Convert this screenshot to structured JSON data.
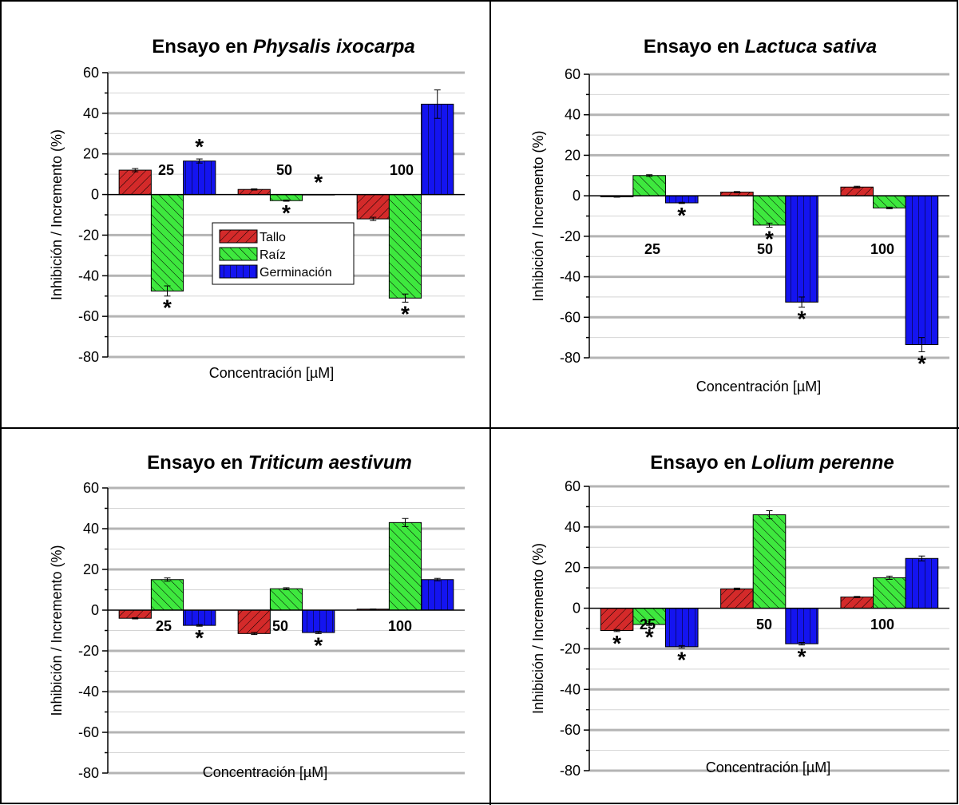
{
  "colors": {
    "tallo": "#d42a2a",
    "raiz": "#3ee83e",
    "germinacion": "#1414f0",
    "grid": "#b4b4b4"
  },
  "chart_data": [
    {
      "type": "bar",
      "title": "Ensayo en ",
      "title_species": "Physalis ixocarpa",
      "xlabel": "Concentración [µM]",
      "ylabel": "Inhibición / Incremento (%)",
      "ylim": [
        -80,
        60
      ],
      "yticks": [
        "60",
        "40",
        "20",
        "0",
        "-20",
        "-40",
        "-60",
        "-80"
      ],
      "grid": true,
      "legend": {
        "placement": "center",
        "entries": [
          "Tallo",
          "Raíz",
          "Germinación"
        ]
      },
      "categories": [
        "25",
        "50",
        "100"
      ],
      "series": [
        {
          "name": "Tallo",
          "values": [
            12,
            2.5,
            -12
          ],
          "errors": [
            0.8,
            0.3,
            0.8
          ],
          "significant": [
            false,
            false,
            false
          ]
        },
        {
          "name": "Raíz",
          "values": [
            -47.5,
            -3,
            -51
          ],
          "errors": [
            2.5,
            0.3,
            2.0
          ],
          "significant": [
            true,
            true,
            true
          ]
        },
        {
          "name": "Germinación",
          "values": [
            16.5,
            0,
            44.5
          ],
          "errors": [
            1.0,
            0,
            7.0
          ],
          "significant": [
            true,
            true,
            false
          ]
        }
      ]
    },
    {
      "type": "bar",
      "title": "Ensayo en ",
      "title_species": "Lactuca sativa",
      "xlabel": "Concentración [µM]",
      "ylabel": "Inhibición / Incremento (%)",
      "ylim": [
        -80,
        60
      ],
      "yticks": [
        "60",
        "40",
        "20",
        "0",
        "-20",
        "-40",
        "-60",
        "-80"
      ],
      "grid": true,
      "categories": [
        "25",
        "50",
        "100"
      ],
      "series": [
        {
          "name": "Tallo",
          "values": [
            -0.5,
            1.8,
            4.3
          ],
          "errors": [
            0.2,
            0.3,
            0.4
          ],
          "significant": [
            false,
            false,
            false
          ]
        },
        {
          "name": "Raíz",
          "values": [
            10,
            -14.5,
            -6
          ],
          "errors": [
            0.4,
            1.0,
            0.4
          ],
          "significant": [
            false,
            true,
            false
          ]
        },
        {
          "name": "Germinación",
          "values": [
            -3.5,
            -52.5,
            -73.5
          ],
          "errors": [
            0.3,
            2.5,
            3.5
          ],
          "significant": [
            true,
            true,
            true
          ]
        }
      ]
    },
    {
      "type": "bar",
      "title": "Ensayo en ",
      "title_species": "Triticum aestivum",
      "xlabel": "Concentración [µM]",
      "ylabel": "Inhibición / Incremento (%)",
      "ylim": [
        -80,
        60
      ],
      "yticks": [
        "60",
        "40",
        "20",
        "0",
        "-20",
        "-40",
        "-60",
        "-80"
      ],
      "grid": true,
      "categories": [
        "25",
        "50",
        "100"
      ],
      "series": [
        {
          "name": "Tallo",
          "values": [
            -4,
            -11.5,
            0.5
          ],
          "errors": [
            0.3,
            0.5,
            0.1
          ],
          "significant": [
            false,
            false,
            false
          ]
        },
        {
          "name": "Raíz",
          "values": [
            15,
            10.5,
            43
          ],
          "errors": [
            0.8,
            0.5,
            2.0
          ],
          "significant": [
            false,
            false,
            false
          ]
        },
        {
          "name": "Germinación",
          "values": [
            -7.5,
            -11,
            15
          ],
          "errors": [
            0.4,
            0.5,
            0.6
          ],
          "significant": [
            true,
            true,
            false
          ]
        }
      ]
    },
    {
      "type": "bar",
      "title": "Ensayo en ",
      "title_species": "Lolium perenne",
      "xlabel": "Concentración [µM]",
      "ylabel": "Inhibición / Incremento (%)",
      "ylim": [
        -80,
        60
      ],
      "yticks": [
        "60",
        "40",
        "20",
        "0",
        "-20",
        "-40",
        "-60",
        "-80"
      ],
      "grid": true,
      "categories": [
        "25",
        "50",
        "100"
      ],
      "series": [
        {
          "name": "Tallo",
          "values": [
            -11,
            9.5,
            5.5
          ],
          "errors": [
            0.5,
            0.4,
            0.3
          ],
          "significant": [
            true,
            false,
            false
          ]
        },
        {
          "name": "Raíz",
          "values": [
            -8,
            46,
            15
          ],
          "errors": [
            0.5,
            2.0,
            0.8
          ],
          "significant": [
            true,
            false,
            false
          ]
        },
        {
          "name": "Germinación",
          "values": [
            -19,
            -17.5,
            24.5
          ],
          "errors": [
            0.6,
            0.6,
            1.2
          ],
          "significant": [
            true,
            true,
            false
          ]
        }
      ]
    }
  ]
}
